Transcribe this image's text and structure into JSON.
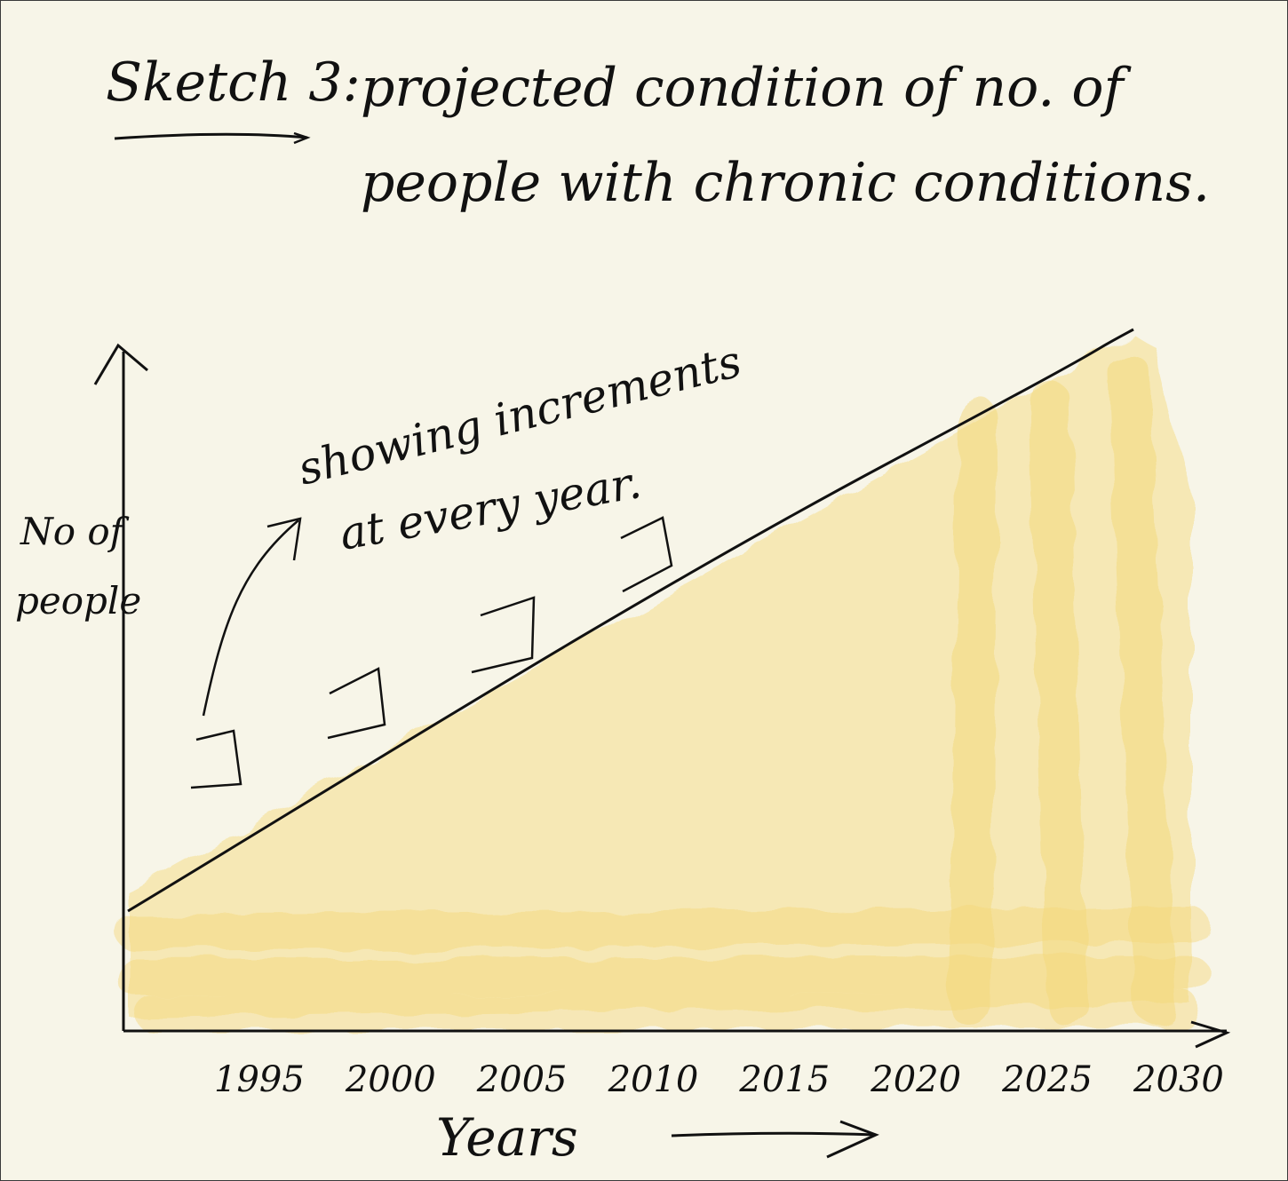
{
  "colors": {
    "paper": "#f7f5e8",
    "ink": "#111111",
    "highlight": "#f6df8a"
  },
  "chart_data": {
    "type": "area",
    "title_label": "Sketch 3:",
    "title_line1": "projected condition of no. of",
    "title_line2": "people with chronic conditions.",
    "xlabel": "Years",
    "ylabel_line1": "No of",
    "ylabel_line2": "people",
    "categories": [
      "1995",
      "2000",
      "2005",
      "2010",
      "2015",
      "2020",
      "2025",
      "2030"
    ],
    "annotation_line1": "showing increments",
    "annotation_line2": "at every year.",
    "trend": "linear increase",
    "grid": false,
    "legend": "none"
  }
}
